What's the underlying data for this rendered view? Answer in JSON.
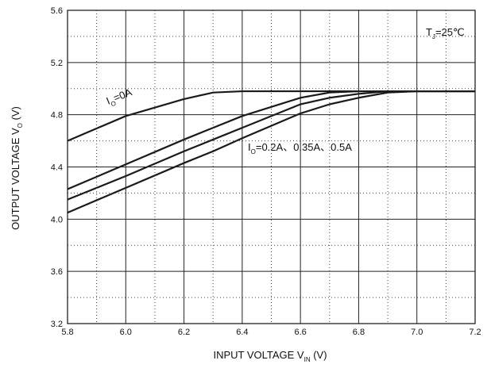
{
  "chart_data": {
    "type": "line",
    "x_label": {
      "main": "INPUT VOLTAGE   V",
      "sub": "IN",
      "unit": "   (V)"
    },
    "y_label": {
      "main": "OUTPUT VOLTAGE   V",
      "sub": "O",
      "unit": "   (V)"
    },
    "annotations": [
      {
        "main": "T",
        "sub": "J",
        "rest": "=25℃"
      },
      {
        "main": "I",
        "sub": "O",
        "rest": "=0A"
      },
      {
        "main": "I",
        "sub": "O",
        "rest": "=0.2A、0.35A、0.5A"
      }
    ],
    "x": [
      5.8,
      6.0,
      6.2,
      6.3,
      6.4,
      6.6,
      6.7,
      6.8,
      6.9,
      7.0,
      7.2
    ],
    "series": [
      {
        "color": "#1a1a1a",
        "values": [
          4.6,
          4.79,
          4.92,
          4.97,
          4.98,
          4.98,
          4.98,
          4.98,
          4.98,
          4.98,
          4.98
        ]
      },
      {
        "color": "#1a1a1a",
        "values": [
          4.23,
          4.42,
          4.61,
          4.7,
          4.79,
          4.93,
          4.97,
          4.98,
          4.98,
          4.98,
          4.98
        ]
      },
      {
        "color": "#1a1a1a",
        "values": [
          4.15,
          4.33,
          4.52,
          4.61,
          4.7,
          4.88,
          4.93,
          4.96,
          4.98,
          4.98,
          4.98
        ]
      },
      {
        "color": "#1a1a1a",
        "values": [
          4.05,
          4.24,
          4.43,
          4.52,
          4.62,
          4.81,
          4.88,
          4.93,
          4.97,
          4.98,
          4.98
        ]
      }
    ],
    "xlim": [
      5.8,
      7.2
    ],
    "xticks": [
      5.8,
      {
        "value": 6,
        "label": "6.0"
      },
      6.2,
      6.4,
      6.6,
      6.8,
      {
        "value": 7,
        "label": "7.0"
      },
      7.2
    ],
    "ylim": [
      3.2,
      5.6
    ],
    "yticks": [
      3.2,
      3.6,
      {
        "value": 4,
        "label": "4.0"
      },
      4.4,
      4.8,
      5.2,
      5.6
    ],
    "grid": true,
    "minor_grid": true
  }
}
